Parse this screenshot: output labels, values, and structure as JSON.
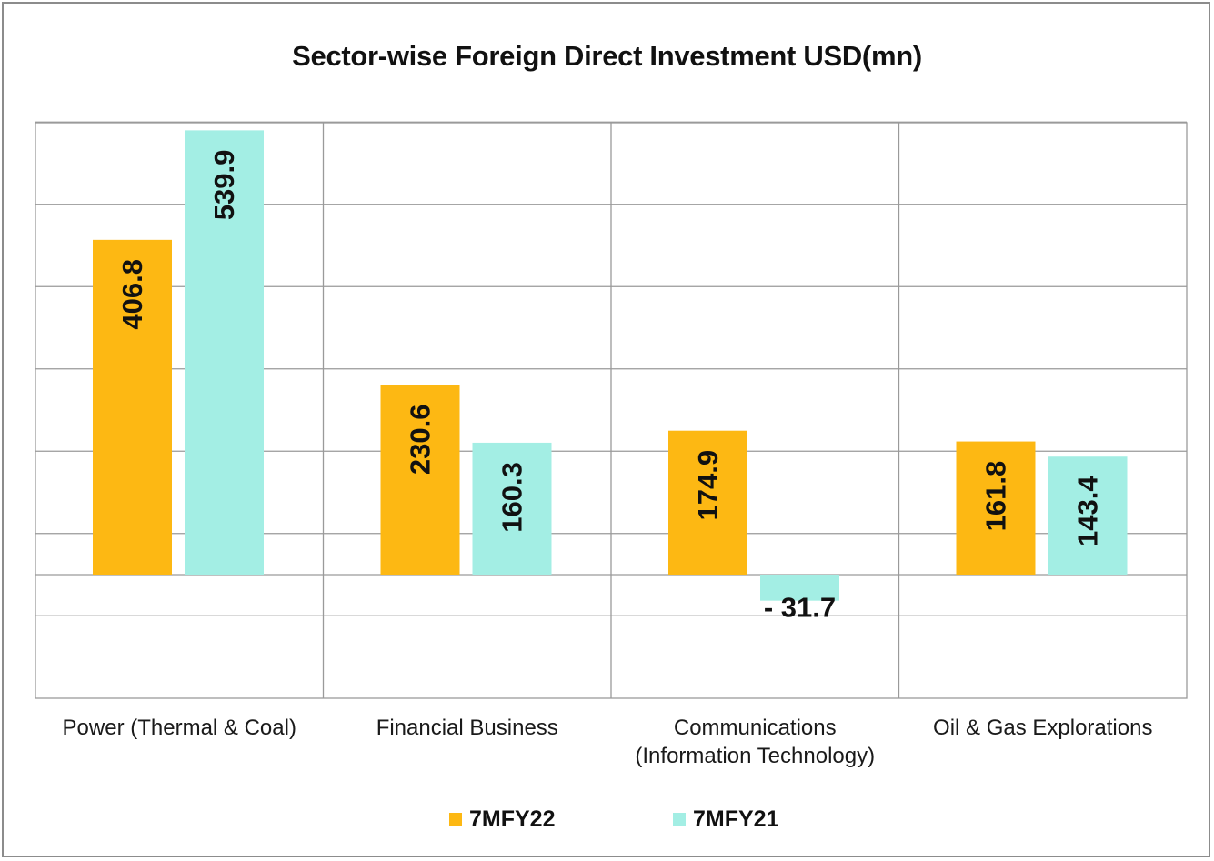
{
  "chart_data": {
    "type": "bar",
    "title": "Sector-wise Foreign Direct Investment USD(mn)",
    "xlabel": "",
    "ylabel": "",
    "categories": [
      "Power (Thermal & Coal)",
      "Financial Business",
      "Communications (Information Technology)",
      "Oil & Gas Explorations"
    ],
    "category_lines": [
      [
        "Power (Thermal & Coal)"
      ],
      [
        "Financial Business"
      ],
      [
        "Communications",
        "(Information Technology)"
      ],
      [
        "Oil & Gas Explorations"
      ]
    ],
    "series": [
      {
        "name": "7MFY22",
        "color": "#FDB813",
        "values": [
          406.8,
          230.6,
          174.9,
          161.8
        ],
        "labels": [
          "406.8",
          "230.6",
          "174.9",
          "161.8"
        ]
      },
      {
        "name": "7MFY21",
        "color": "#A3EEE4",
        "values": [
          539.9,
          160.3,
          -31.7,
          143.4
        ],
        "labels": [
          "539.9",
          "160.3",
          "- 31.7",
          "143.4"
        ]
      }
    ],
    "ylim": [
      -150,
      550
    ],
    "gridlines": [
      -50,
      0,
      50,
      150,
      250,
      350,
      450,
      550
    ],
    "grid": true,
    "legend_position": "bottom"
  }
}
